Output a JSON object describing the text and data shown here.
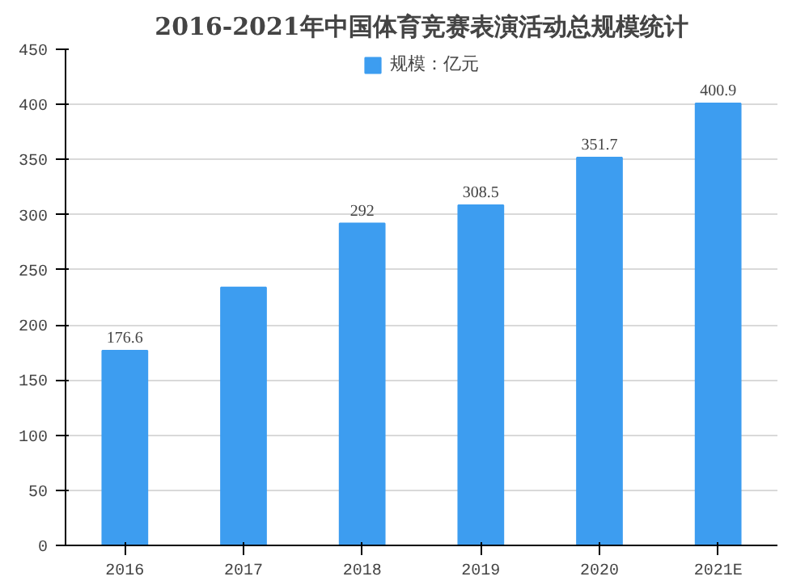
{
  "chart_data": {
    "type": "bar",
    "title": "2016-2021年中国体育竞赛表演活动总规模统计",
    "categories": [
      "2016",
      "2017",
      "2018",
      "2019",
      "2020",
      "2021E"
    ],
    "series": [
      {
        "name": "规模：亿元",
        "color": "#3d9df0",
        "values": [
          176.6,
          234,
          292,
          308.5,
          351.7,
          400.9
        ],
        "value_labels": [
          "176.6",
          null,
          "292",
          "308.5",
          "351.7",
          "400.9"
        ]
      }
    ],
    "ylim": [
      0,
      450
    ],
    "yticks": [
      0,
      50,
      100,
      150,
      200,
      250,
      300,
      350,
      400,
      450
    ],
    "grid": "y",
    "legend": "top"
  }
}
